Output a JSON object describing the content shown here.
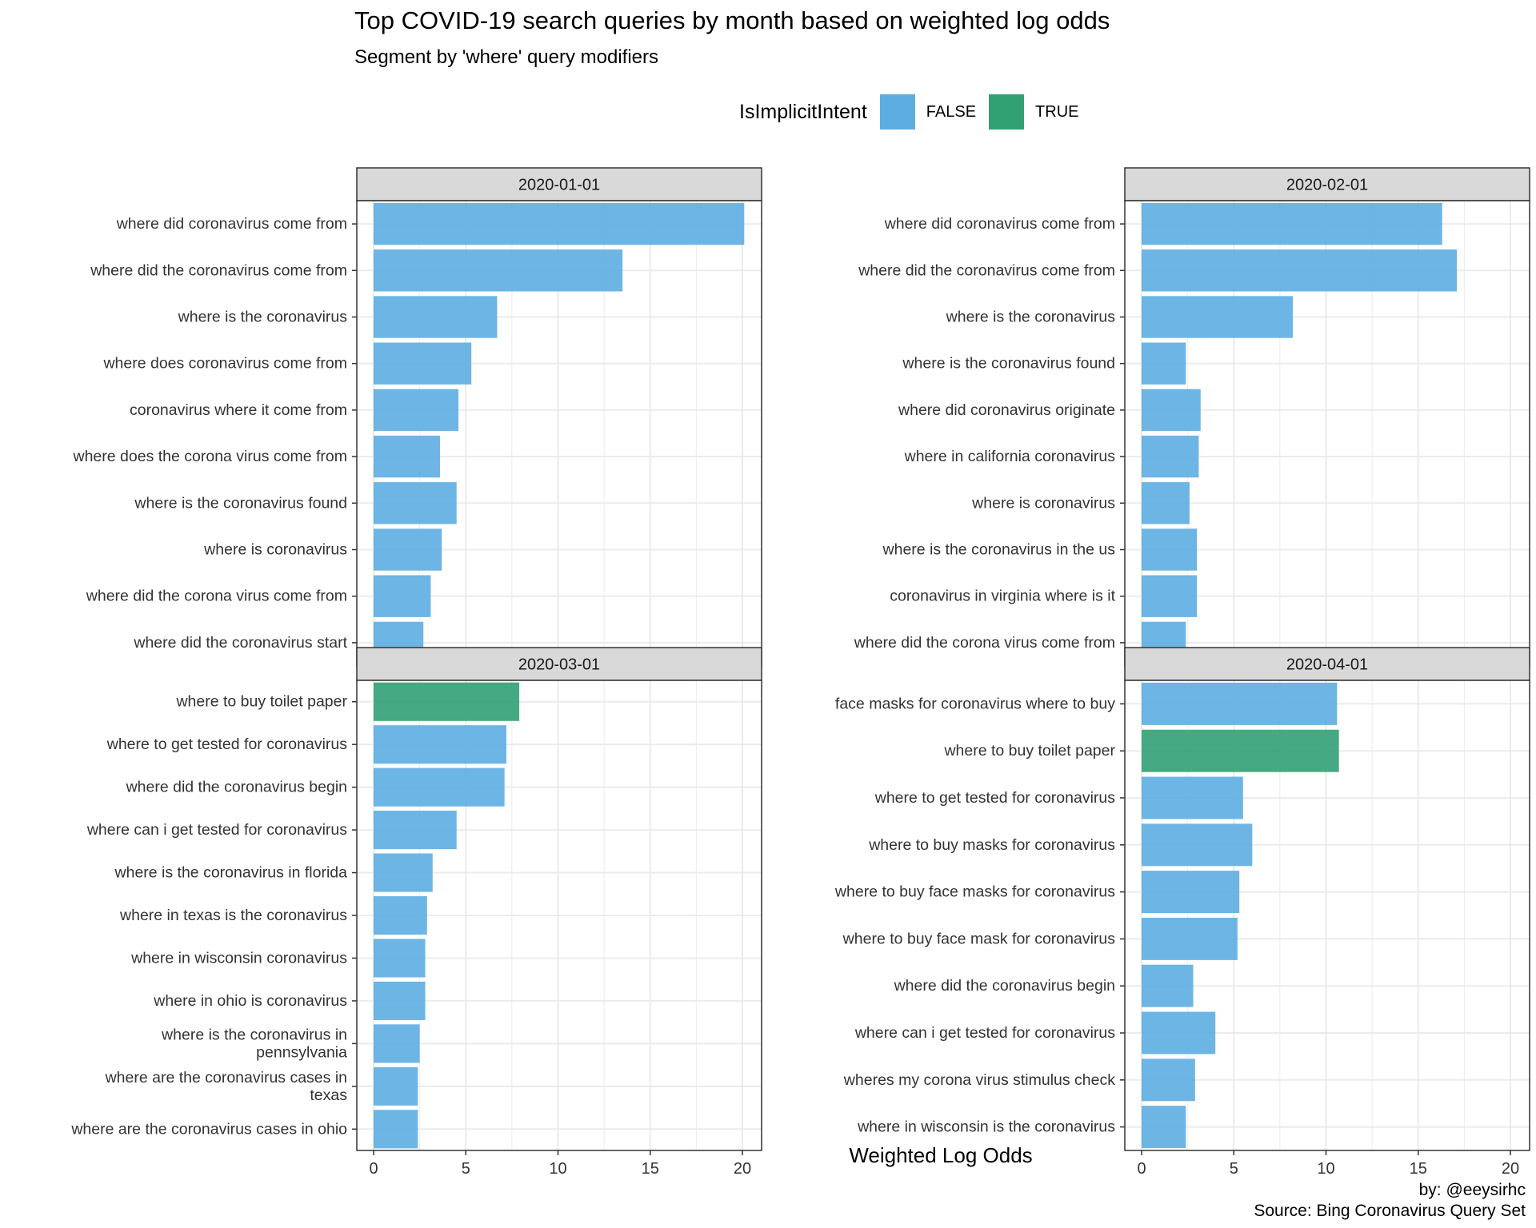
{
  "header": {
    "title": "Top COVID-19 search queries by month based on weighted log odds",
    "subtitle": "Segment by 'where' query modifiers"
  },
  "legend": {
    "title": "IsImplicitIntent",
    "items": [
      {
        "label": "FALSE",
        "color": "#5DADE2"
      },
      {
        "label": "TRUE",
        "color": "#31A073"
      }
    ]
  },
  "caption": {
    "line1": "by: @eeysirhc",
    "line2": "Source: Bing Coronavirus Query Set"
  },
  "chart_data": {
    "type": "bar",
    "orientation": "horizontal",
    "xlabel": "Weighted Log Odds",
    "xlim": [
      0,
      20
    ],
    "xticks": [
      0,
      5,
      10,
      15,
      20
    ],
    "grid": true,
    "legend_position": "top",
    "colors": {
      "FALSE": "#5DADE2",
      "TRUE": "#31A073"
    },
    "panels": [
      {
        "facet": "2020-01-01",
        "categories": [
          "where did coronavirus come from",
          "where did the coronavirus come from",
          "where is the coronavirus",
          "where does coronavirus come from",
          "coronavirus where it come from",
          "where does the corona virus come from",
          "where is the coronavirus found",
          "where is coronavirus",
          "where did the corona virus come from",
          "where did the coronavirus start"
        ],
        "values": [
          20.1,
          13.5,
          6.7,
          5.3,
          4.6,
          3.6,
          4.5,
          3.7,
          3.1,
          2.7
        ],
        "implicit": [
          false,
          false,
          false,
          false,
          false,
          false,
          false,
          false,
          false,
          false
        ]
      },
      {
        "facet": "2020-02-01",
        "categories": [
          "where did coronavirus come from",
          "where did the coronavirus come from",
          "where is the coronavirus",
          "where is the coronavirus found",
          "where did coronavirus originate",
          "where in california coronavirus",
          "where is coronavirus",
          "where is the coronavirus in the us",
          "coronavirus in virginia where is it",
          "where did the corona virus come from"
        ],
        "values": [
          16.3,
          17.1,
          8.2,
          2.4,
          3.2,
          3.1,
          2.6,
          3.0,
          3.0,
          2.4
        ],
        "implicit": [
          false,
          false,
          false,
          false,
          false,
          false,
          false,
          false,
          false,
          false
        ]
      },
      {
        "facet": "2020-03-01",
        "categories": [
          "where to buy toilet paper",
          "where to get tested for coronavirus",
          "where did the coronavirus begin",
          "where can i get tested for coronavirus",
          "where is the coronavirus in florida",
          "where in texas is the coronavirus",
          "where in wisconsin coronavirus",
          "where in ohio is coronavirus",
          "where is the coronavirus in pennsylvania",
          "where are the coronavirus cases in texas",
          "where are the coronavirus cases in ohio"
        ],
        "values": [
          7.9,
          7.2,
          7.1,
          4.5,
          3.2,
          2.9,
          2.8,
          2.8,
          2.5,
          2.4,
          2.4
        ],
        "implicit": [
          true,
          false,
          false,
          false,
          false,
          false,
          false,
          false,
          false,
          false,
          false
        ]
      },
      {
        "facet": "2020-04-01",
        "categories": [
          "face masks for coronavirus where to buy",
          "where to buy toilet paper",
          "where to get tested for coronavirus",
          "where to buy masks for coronavirus",
          "where to buy face masks for coronavirus",
          "where to buy face mask for coronavirus",
          "where did the coronavirus begin",
          "where can i get tested for coronavirus",
          "wheres my corona virus stimulus check",
          "where in wisconsin is the coronavirus"
        ],
        "values": [
          10.6,
          10.7,
          5.5,
          6.0,
          5.3,
          5.2,
          2.8,
          4.0,
          2.9,
          2.4
        ],
        "implicit": [
          false,
          true,
          false,
          false,
          false,
          false,
          false,
          false,
          false,
          false
        ]
      }
    ]
  }
}
